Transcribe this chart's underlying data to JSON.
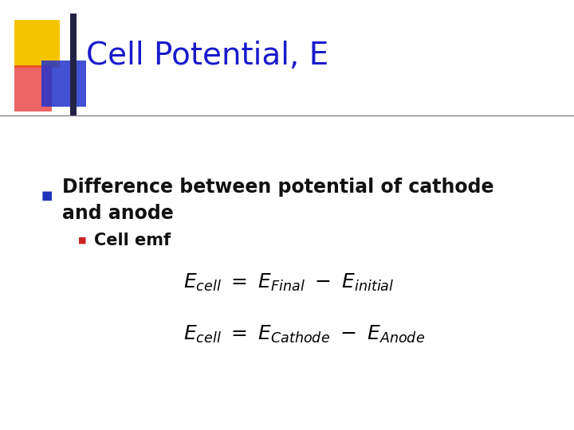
{
  "title": "Cell Potential, E",
  "title_color": "#1a1acc",
  "title_fontsize": 28,
  "background_color": "#ffffff",
  "bullet1_line1": "Difference between potential of cathode",
  "bullet1_line2": "and anode",
  "bullet1_color": "#111111",
  "bullet1_fontsize": 17,
  "bullet1_marker_color": "#2233bb",
  "bullet2_text": "Cell emf",
  "bullet2_color": "#111111",
  "bullet2_fontsize": 15,
  "bullet2_marker_color": "#cc2222",
  "eq_fontsize": 18,
  "deco_yellow": "#f5c400",
  "deco_red_light": "#e83030",
  "deco_blue": "#2233cc",
  "deco_dark": "#222244",
  "line_color": "#888888"
}
